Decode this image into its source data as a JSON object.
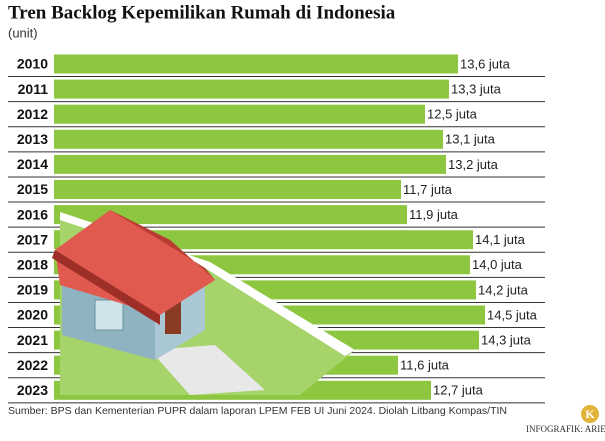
{
  "chart_data": {
    "type": "bar",
    "orientation": "horizontal",
    "title": "Tren Backlog Kepemilikan Rumah di Indonesia",
    "subtitle": "(unit)",
    "categories": [
      "2010",
      "2011",
      "2012",
      "2013",
      "2014",
      "2015",
      "2016",
      "2017",
      "2018",
      "2019",
      "2020",
      "2021",
      "2022",
      "2023"
    ],
    "values": [
      13.6,
      13.3,
      12.5,
      13.1,
      13.2,
      11.7,
      11.9,
      14.1,
      14.0,
      14.2,
      14.5,
      14.3,
      11.6,
      12.7
    ],
    "value_labels": [
      "13,6 juta",
      "13,3 juta",
      "12,5 juta",
      "13,1 juta",
      "13,2 juta",
      "11,7 juta",
      "11,9 juta",
      "14,1 juta",
      "14,0 juta",
      "14,2 juta",
      "14,5 juta",
      "14,3 juta",
      "11,6 juta",
      "12,7 juta"
    ],
    "color": "#8dc63f",
    "source": "Sumber: BPS dan Kementerian PUPR dalam laporan LPEM FEB UI Juni 2024. Diolah Litbang Kompas/TIN",
    "credit": "INFOGRAFIK: ARIE",
    "logo": "K"
  }
}
